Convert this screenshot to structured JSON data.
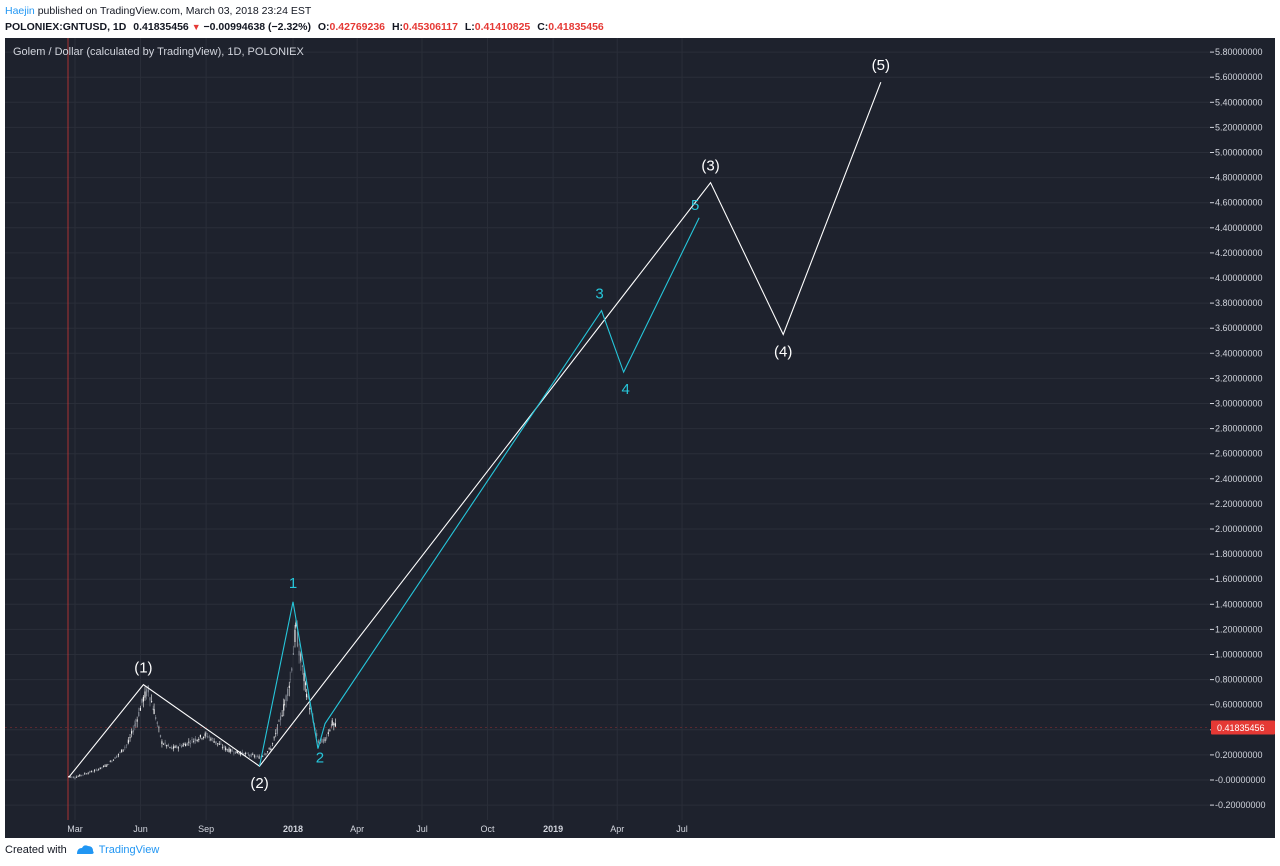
{
  "header": {
    "author": "Haejin",
    "published_text": "published on TradingView.com, March 03, 2018 23:24 EST",
    "symbol": "POLONIEX:GNTUSD, 1D",
    "last": "0.41835456",
    "change": "−0.00994638 (−2.32%)",
    "open_label": "O:",
    "open": "0.42769236",
    "high_label": "H:",
    "high": "0.45306117",
    "low_label": "L:",
    "low": "0.41410825",
    "close_label": "C:",
    "close": "0.41835456"
  },
  "footer": {
    "created_with": "Created with",
    "brand": "TradingView"
  },
  "colors": {
    "background": "#1e222d",
    "grid": "#2a2e39",
    "text": "#d1d4dc",
    "wave_major": "#ffffff",
    "wave_minor": "#26c6da",
    "price_tag": "#e53935",
    "price_line": "#e53935",
    "candle_up": "#ffffff",
    "candle_down": "#8a8f9a"
  },
  "chart_data": {
    "type": "line",
    "title": "Golem / Dollar (calculated by TradingView), 1D, POLONIEX",
    "x_ticks": [
      "Mar",
      "Jun",
      "Sep",
      "2018",
      "Apr",
      "Jul",
      "Oct",
      "2019",
      "Apr",
      "Jul"
    ],
    "y_ticks": [
      "5.80000000",
      "5.60000000",
      "5.40000000",
      "5.20000000",
      "5.00000000",
      "4.80000000",
      "4.60000000",
      "4.40000000",
      "4.20000000",
      "4.00000000",
      "3.80000000",
      "3.60000000",
      "3.40000000",
      "3.20000000",
      "3.00000000",
      "2.80000000",
      "2.60000000",
      "2.40000000",
      "2.20000000",
      "2.00000000",
      "1.80000000",
      "1.60000000",
      "1.40000000",
      "1.20000000",
      "1.00000000",
      "0.80000000",
      "0.60000000",
      "0.40000000",
      "0.20000000",
      "-0.00000000",
      "-0.20000000"
    ],
    "ylim": [
      -0.25,
      6.0
    ],
    "grid": true,
    "current_price_label": "0.41835456",
    "current_price": 0.41835,
    "price_series": {
      "name": "GNTUSD",
      "x": [
        "2017-02-20",
        "2017-03-01",
        "2017-03-15",
        "2017-04-01",
        "2017-04-15",
        "2017-05-01",
        "2017-05-15",
        "2017-05-25",
        "2017-06-05",
        "2017-06-12",
        "2017-06-20",
        "2017-07-01",
        "2017-07-15",
        "2017-08-01",
        "2017-08-15",
        "2017-09-01",
        "2017-09-15",
        "2017-10-01",
        "2017-10-15",
        "2017-11-01",
        "2017-11-15",
        "2017-12-01",
        "2017-12-10",
        "2017-12-20",
        "2017-12-28",
        "2018-01-05",
        "2018-01-12",
        "2018-01-20",
        "2018-02-01",
        "2018-02-06",
        "2018-02-15",
        "2018-02-25",
        "2018-03-03"
      ],
      "y": [
        0.03,
        0.02,
        0.05,
        0.08,
        0.12,
        0.2,
        0.3,
        0.45,
        0.65,
        0.72,
        0.55,
        0.3,
        0.25,
        0.28,
        0.32,
        0.36,
        0.3,
        0.24,
        0.22,
        0.2,
        0.18,
        0.25,
        0.4,
        0.6,
        0.8,
        1.2,
        0.95,
        0.7,
        0.4,
        0.3,
        0.32,
        0.45,
        0.42
      ]
    },
    "series": [
      {
        "name": "",
        "x": [
          "2017-02-20",
          "2017-06-05",
          "2017-11-15",
          "2019-08-10",
          "2019-11-20",
          "2020-04-05"
        ],
        "y": [
          0.02,
          0.76,
          0.11,
          4.76,
          3.55,
          5.56
        ],
        "labels": [
          "",
          "(1)",
          "(2)",
          "(3)",
          "(4)",
          "(5)"
        ]
      },
      {
        "name": "",
        "x": [
          "2017-11-15",
          "2018-01-01",
          "2018-02-05",
          "2018-02-15",
          "2019-03-10",
          "2019-04-10",
          "2019-07-25"
        ],
        "y": [
          0.11,
          1.42,
          0.25,
          0.45,
          3.74,
          3.25,
          4.48
        ],
        "labels": [
          "",
          "1",
          "2",
          "",
          "3",
          "4",
          "5"
        ]
      }
    ]
  }
}
